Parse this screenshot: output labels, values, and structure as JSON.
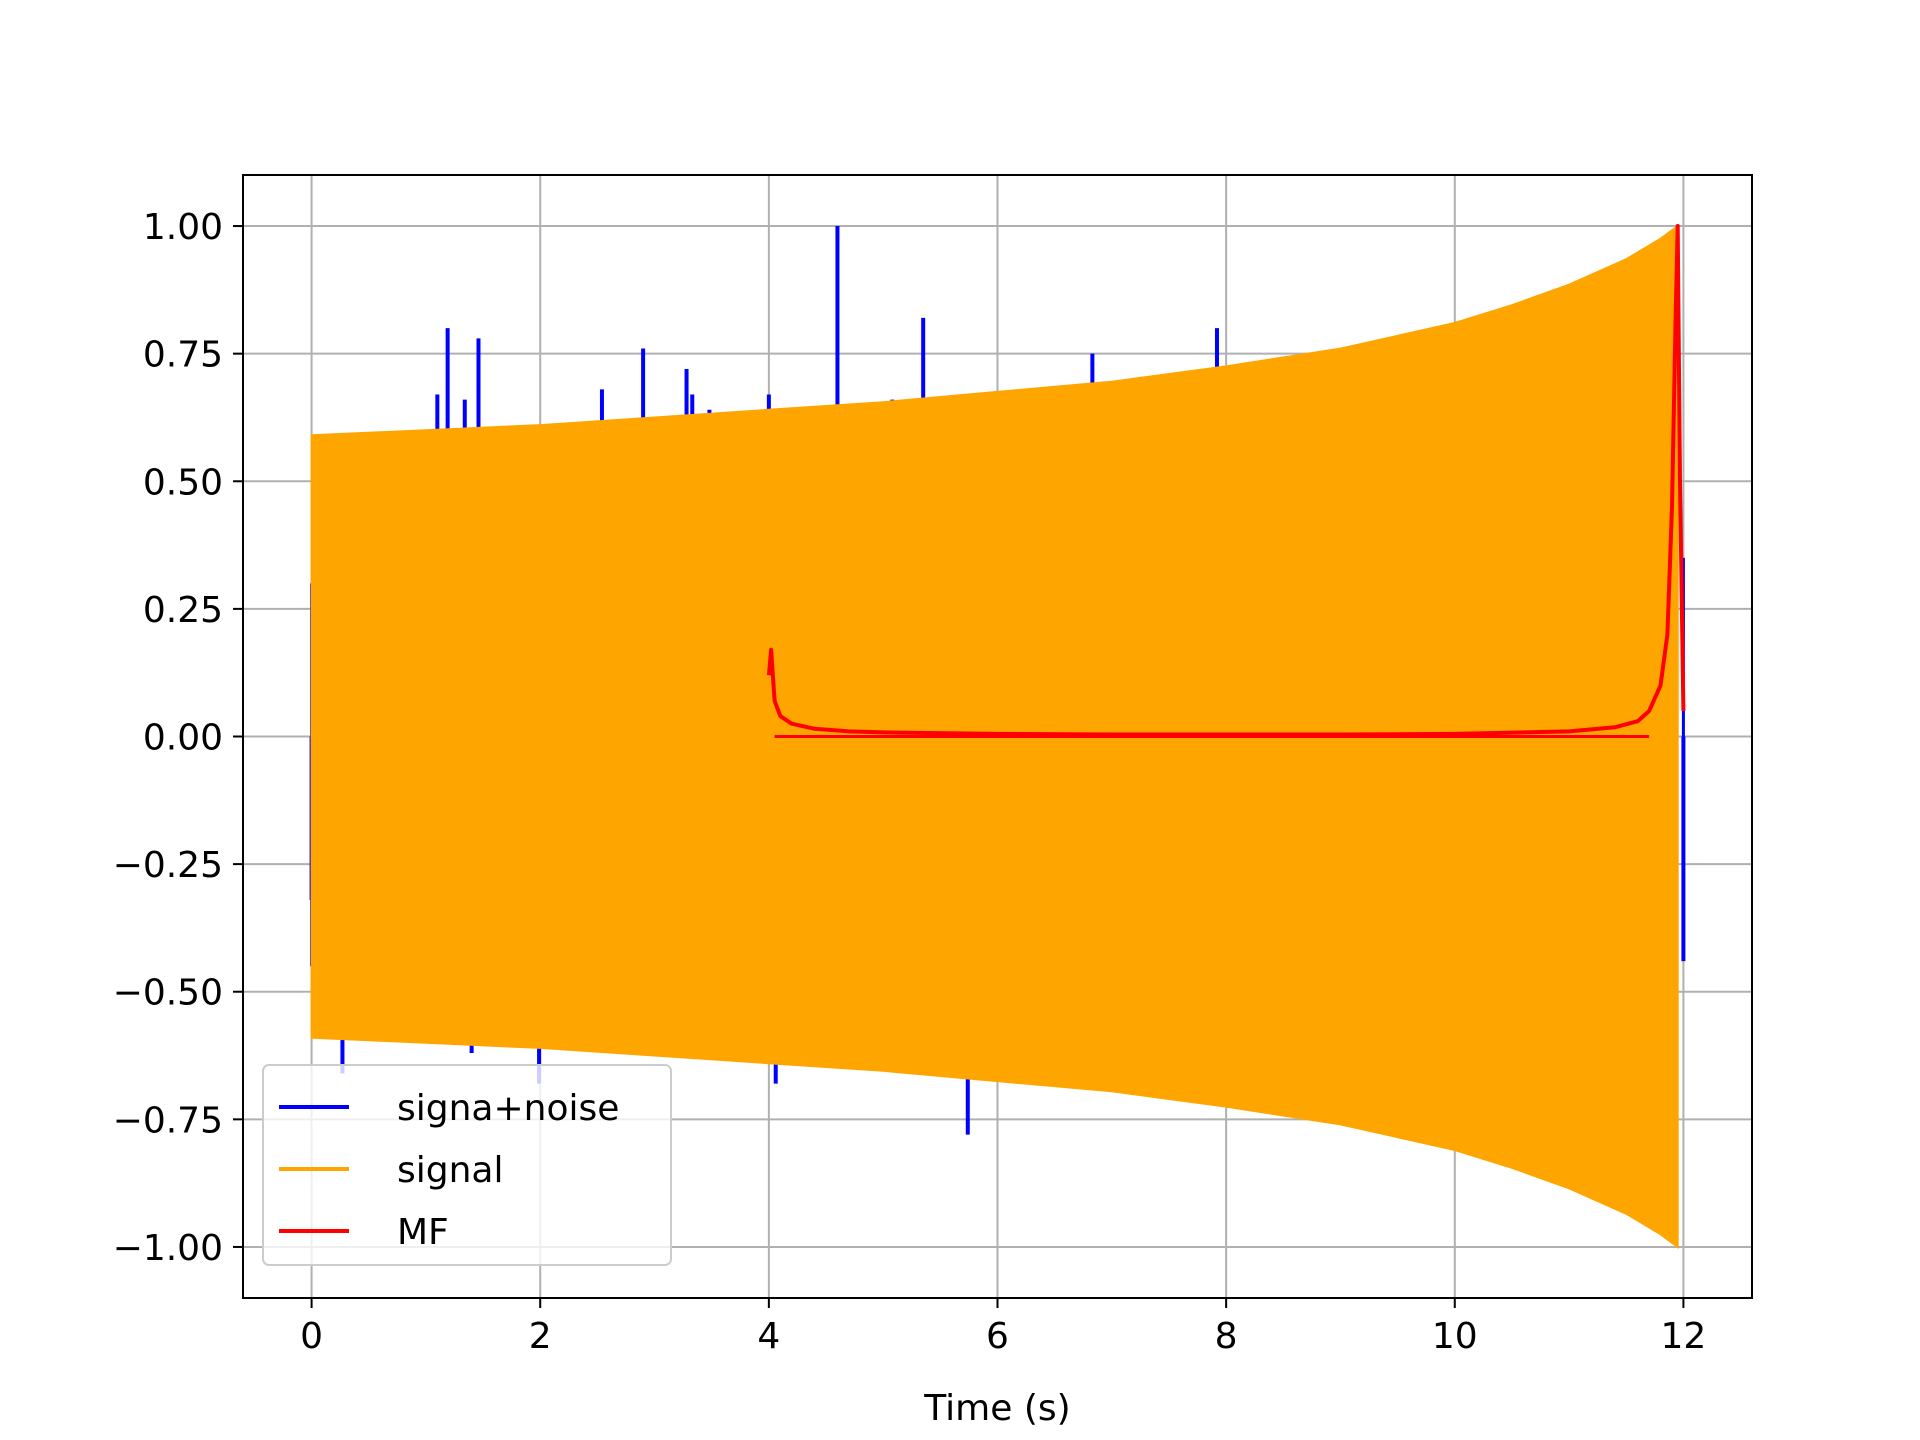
{
  "chart_data": {
    "type": "line",
    "title": "",
    "xlabel": "Time (s)",
    "ylabel": "",
    "xlim": [
      -0.6,
      12.6
    ],
    "ylim": [
      -1.1,
      1.1
    ],
    "grid": true,
    "legend_position": "lower-left",
    "x_ticks": [
      0,
      2,
      4,
      6,
      8,
      10,
      12
    ],
    "x_tick_labels": [
      "0",
      "2",
      "4",
      "6",
      "8",
      "10",
      "12"
    ],
    "y_ticks": [
      1.0,
      0.75,
      0.5,
      0.25,
      0.0,
      -0.25,
      -0.5,
      -0.75,
      -1.0
    ],
    "y_tick_labels": [
      "1.00",
      "0.75",
      "0.50",
      "0.25",
      "0.00",
      "−0.25",
      "−0.50",
      "−0.75",
      "−1.00"
    ],
    "series": [
      {
        "name": "signa+noise",
        "color": "#0000ff",
        "style": "spikes",
        "x": [
          0.0,
          0.27,
          1.1,
          1.19,
          1.34,
          1.4,
          1.46,
          1.99,
          2.54,
          2.9,
          3.28,
          3.33,
          3.48,
          4.0,
          4.06,
          4.6,
          5.08,
          5.35,
          5.74,
          6.83,
          7.92,
          12.0
        ],
        "y": [
          -0.32,
          -0.66,
          0.67,
          0.8,
          0.66,
          -0.62,
          0.78,
          -0.68,
          0.68,
          0.76,
          0.72,
          0.67,
          0.64,
          0.67,
          -0.68,
          1.0,
          0.66,
          0.82,
          -0.78,
          0.75,
          0.8,
          -0.44
        ]
      },
      {
        "name": "signal",
        "color": "#ffa500",
        "style": "envelope",
        "x": [
          0,
          1,
          2,
          3,
          4,
          5,
          6,
          7,
          8,
          9,
          10,
          10.5,
          11,
          11.5,
          11.8,
          11.95
        ],
        "y": [
          0.59,
          0.6,
          0.61,
          0.625,
          0.64,
          0.655,
          0.675,
          0.695,
          0.725,
          0.76,
          0.81,
          0.845,
          0.885,
          0.935,
          0.975,
          1.0
        ]
      },
      {
        "name": "MF",
        "color": "#ff0000",
        "style": "line",
        "x": [
          4.0,
          4.02,
          4.05,
          4.1,
          4.2,
          4.4,
          4.7,
          5.0,
          6.0,
          7.0,
          8.0,
          9.0,
          10.0,
          11.0,
          11.4,
          11.6,
          11.7,
          11.8,
          11.86,
          11.9,
          11.93,
          11.95,
          11.97,
          12.0
        ],
        "y": [
          0.12,
          0.17,
          0.07,
          0.04,
          0.025,
          0.015,
          0.01,
          0.008,
          0.005,
          0.004,
          0.004,
          0.004,
          0.005,
          0.01,
          0.018,
          0.03,
          0.05,
          0.1,
          0.2,
          0.45,
          0.8,
          1.0,
          0.5,
          0.05
        ]
      }
    ]
  }
}
